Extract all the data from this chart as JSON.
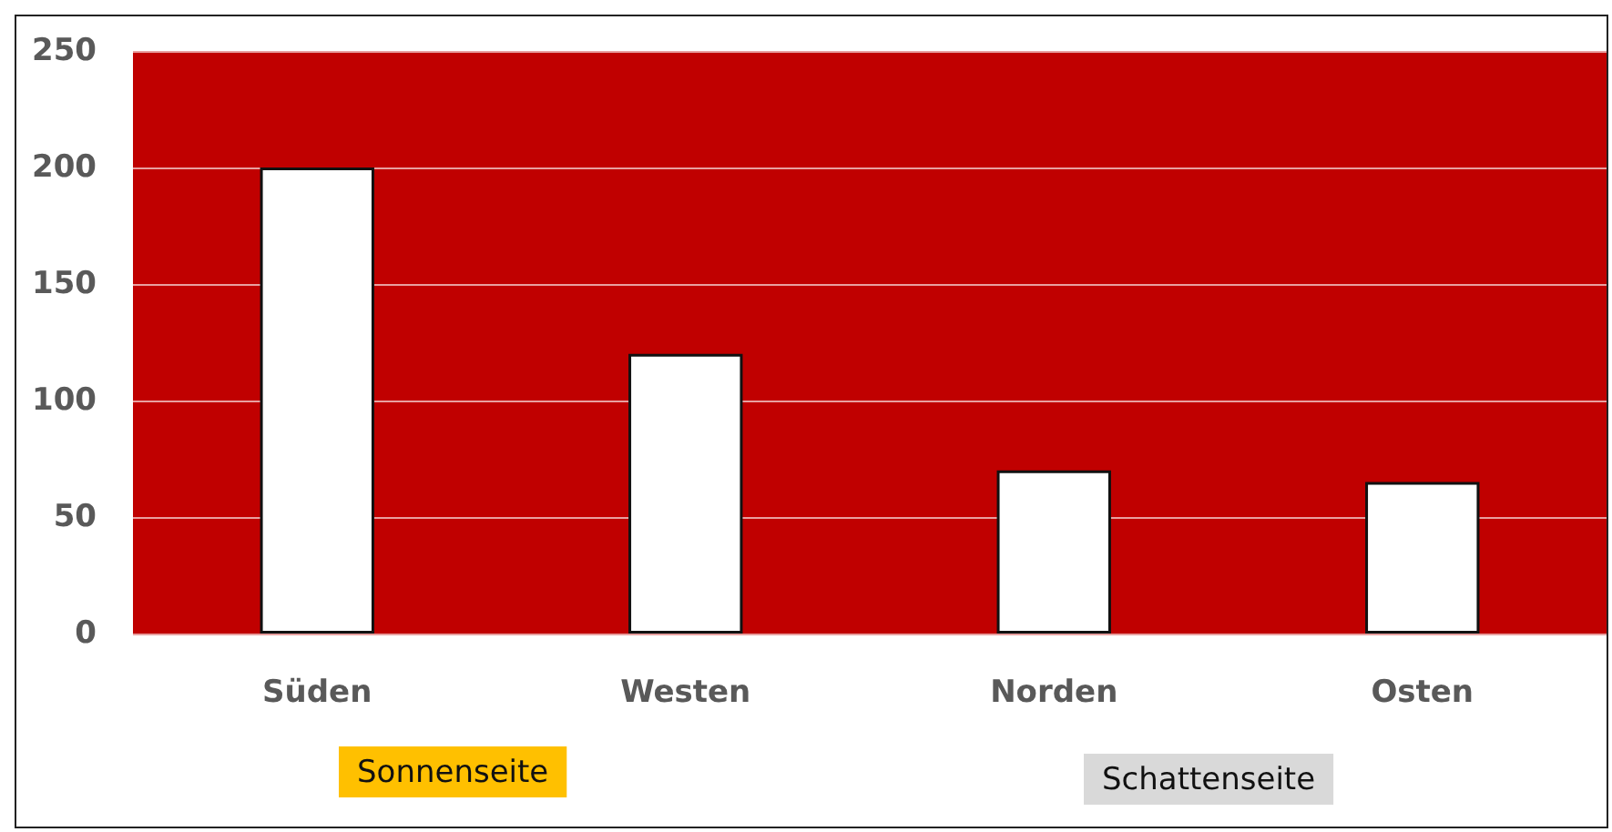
{
  "chart_data": {
    "type": "bar",
    "categories": [
      "Süden",
      "Westen",
      "Norden",
      "Osten"
    ],
    "values": [
      200,
      120,
      70,
      65
    ],
    "color": "#ffffff",
    "ylim": [
      0,
      250
    ],
    "yticks": [
      0,
      50,
      100,
      150,
      200,
      250
    ],
    "grid": "y",
    "annotations": [
      "Sonnenseite",
      "Schattenseite"
    ]
  }
}
